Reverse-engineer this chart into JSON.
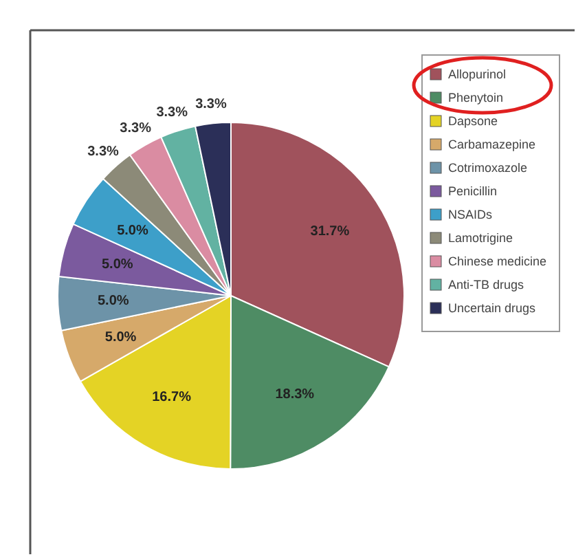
{
  "chart_data": {
    "type": "pie",
    "categories": [
      "Allopurinol",
      "Phenytoin",
      "Dapsone",
      "Carbamazepine",
      "Cotrimoxazole",
      "Penicillin",
      "NSAIDs",
      "Lamotrigine",
      "Chinese medicine",
      "Anti-TB drugs",
      "Uncertain drugs"
    ],
    "values": [
      31.7,
      18.3,
      16.7,
      5.0,
      5.0,
      5.0,
      5.0,
      3.3,
      3.3,
      3.3,
      3.3
    ],
    "value_labels": [
      "31.7%",
      "18.3%",
      "16.7%",
      "5.0%",
      "5.0%",
      "5.0%",
      "5.0%",
      "3.3%",
      "3.3%",
      "3.3%",
      "3.3%"
    ],
    "colors": [
      "#a0525c",
      "#4e8c64",
      "#e4d325",
      "#d6a96a",
      "#6d93a8",
      "#7b5a9e",
      "#3d9fc9",
      "#8c8a78",
      "#da8ca2",
      "#62b2a2",
      "#2b2f58"
    ],
    "legend": "right"
  }
}
